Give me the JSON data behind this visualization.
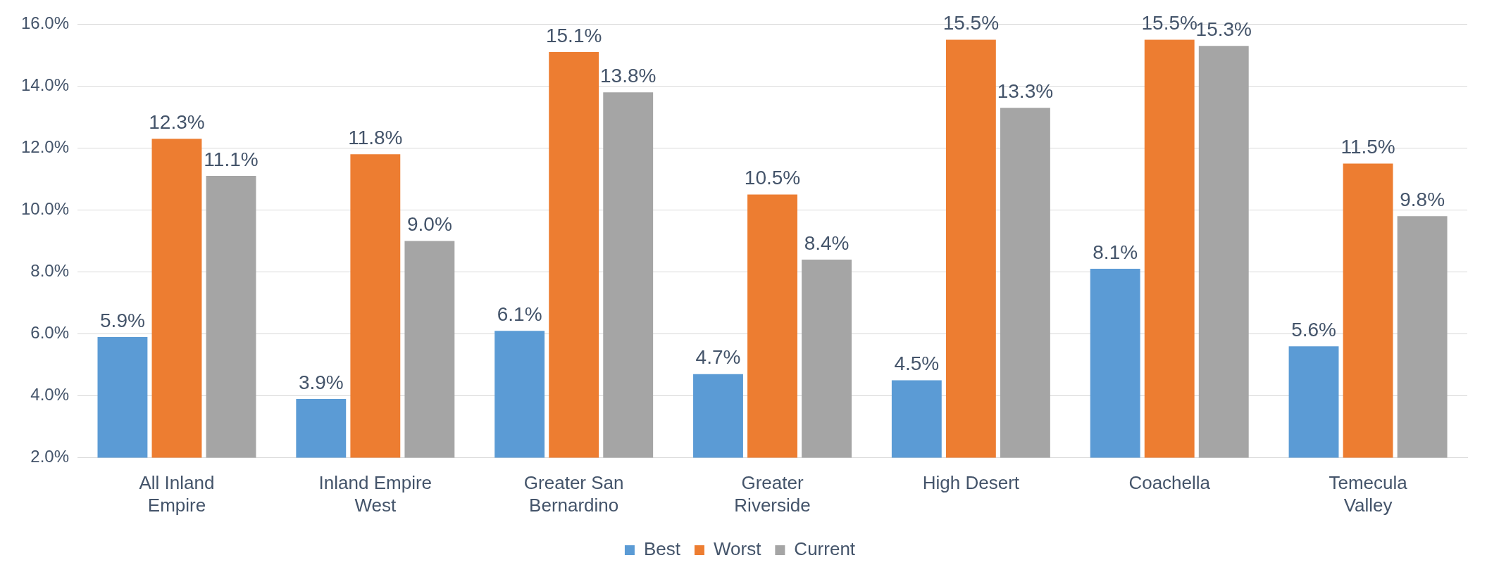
{
  "chart_data": {
    "type": "bar",
    "categories": [
      "All Inland Empire",
      "Inland Empire West",
      "Greater San Bernardino",
      "Greater Riverside",
      "High Desert",
      "Coachella",
      "Temecula Valley"
    ],
    "series": [
      {
        "name": "Best",
        "color": "#5b9bd5",
        "values": [
          5.9,
          3.9,
          6.1,
          4.7,
          4.5,
          8.1,
          5.6
        ],
        "value_labels": [
          "5.9%",
          "3.9%",
          "6.1%",
          "4.7%",
          "4.5%",
          "8.1%",
          "5.6%"
        ]
      },
      {
        "name": "Worst",
        "color": "#ed7d31",
        "values": [
          12.3,
          11.8,
          15.1,
          10.5,
          15.5,
          15.5,
          11.5
        ],
        "value_labels": [
          "12.3%",
          "11.8%",
          "15.1%",
          "10.5%",
          "15.5%",
          "15.5%",
          "11.5%"
        ]
      },
      {
        "name": "Current",
        "color": "#a5a5a5",
        "values": [
          11.1,
          9.0,
          13.8,
          8.4,
          13.3,
          15.3,
          9.8
        ],
        "value_labels": [
          "11.1%",
          "9.0%",
          "13.8%",
          "8.4%",
          "13.3%",
          "15.3%",
          "9.8%"
        ]
      }
    ],
    "ylim": [
      2,
      16
    ],
    "yticks": [
      {
        "value": 2,
        "label": "2.0%"
      },
      {
        "value": 4,
        "label": "4.0%"
      },
      {
        "value": 6,
        "label": "6.0%"
      },
      {
        "value": 8,
        "label": "8.0%"
      },
      {
        "value": 10,
        "label": "10.0%"
      },
      {
        "value": 12,
        "label": "12.0%"
      },
      {
        "value": 14,
        "label": "14.0%"
      },
      {
        "value": 16,
        "label": "16.0%"
      }
    ],
    "grid": "y",
    "legend": "bottom"
  }
}
